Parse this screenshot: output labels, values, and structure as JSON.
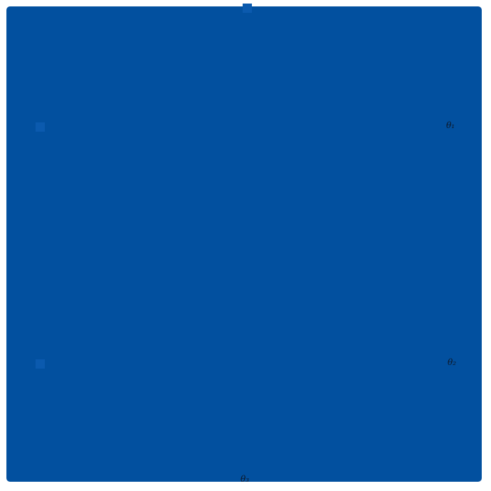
{
  "colors": {
    "page_background": "#ffffff",
    "panel_blue": "#02509f",
    "marker_blue": "#0b5aae",
    "label_text": "#0e1726"
  },
  "panel": {
    "shape": "filled-square"
  },
  "markers": [
    {
      "position": "top-center-edge"
    },
    {
      "position": "left-upper"
    },
    {
      "position": "left-lower"
    }
  ],
  "labels": {
    "theta1": "θ₁",
    "theta2": "θ₂",
    "theta3": "θ₃"
  }
}
